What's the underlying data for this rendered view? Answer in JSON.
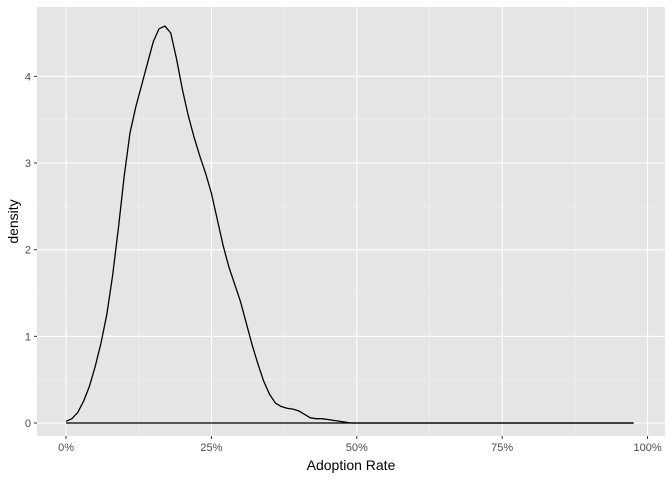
{
  "chart_data": {
    "type": "area",
    "title": "",
    "xlabel": "Adoption Rate",
    "ylabel": "density",
    "xlim": [
      -0.05,
      1.03
    ],
    "ylim": [
      -0.15,
      4.8
    ],
    "x_ticks": [
      0,
      0.25,
      0.5,
      0.75,
      1.0
    ],
    "x_tick_labels": [
      "0%",
      "25%",
      "50%",
      "75%",
      "100%"
    ],
    "y_ticks": [
      0,
      1,
      2,
      3,
      4
    ],
    "y_tick_labels": [
      "0",
      "1",
      "2",
      "3",
      "4"
    ],
    "grid": true,
    "legend": "none",
    "baseline": [
      0,
      0.976
    ],
    "series": [
      {
        "x": [
          0.0,
          0.01,
          0.02,
          0.03,
          0.04,
          0.05,
          0.06,
          0.07,
          0.08,
          0.09,
          0.1,
          0.11,
          0.12,
          0.13,
          0.14,
          0.15,
          0.16,
          0.17,
          0.18,
          0.19,
          0.2,
          0.21,
          0.22,
          0.23,
          0.24,
          0.25,
          0.26,
          0.27,
          0.28,
          0.29,
          0.3,
          0.31,
          0.32,
          0.33,
          0.34,
          0.35,
          0.36,
          0.37,
          0.38,
          0.39,
          0.4,
          0.41,
          0.42,
          0.43,
          0.44,
          0.45,
          0.46,
          0.47,
          0.48,
          0.49,
          0.5,
          0.51,
          0.52,
          0.53,
          0.54,
          0.55,
          0.56,
          0.57,
          0.58,
          0.59,
          0.6,
          0.61,
          0.62,
          0.63,
          0.65,
          0.7,
          0.75,
          0.8,
          0.85,
          0.9,
          0.95,
          0.976
        ],
        "y": [
          0.02,
          0.05,
          0.12,
          0.25,
          0.42,
          0.65,
          0.92,
          1.25,
          1.7,
          2.25,
          2.85,
          3.35,
          3.65,
          3.9,
          4.15,
          4.4,
          4.55,
          4.58,
          4.5,
          4.2,
          3.85,
          3.55,
          3.3,
          3.08,
          2.88,
          2.65,
          2.35,
          2.05,
          1.8,
          1.6,
          1.4,
          1.15,
          0.9,
          0.68,
          0.48,
          0.33,
          0.23,
          0.19,
          0.17,
          0.16,
          0.14,
          0.1,
          0.06,
          0.05,
          0.05,
          0.04,
          0.03,
          0.02,
          0.01,
          0.0,
          0.0,
          0.0,
          0.0,
          0.0,
          0.0,
          0.0,
          0.0,
          0.0,
          0.0,
          0.0,
          0.0,
          0.0,
          0.0,
          0.0,
          0.0,
          0.0,
          0.0,
          0.0,
          0.0,
          0.0,
          0.0,
          0.0
        ]
      }
    ]
  },
  "colors": {
    "panel_bg": "#e5e5e5",
    "grid_major": "#ffffff",
    "grid_minor": "#f2f2f2",
    "line": "#000000",
    "tick": "#333333"
  }
}
